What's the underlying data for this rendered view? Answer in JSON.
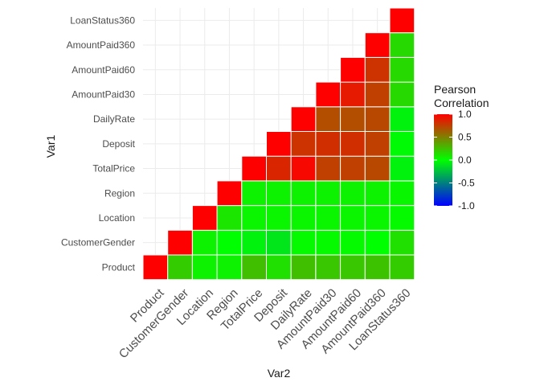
{
  "chart_data": {
    "type": "heatmap",
    "variables": [
      "Product",
      "CustomerGender",
      "Location",
      "Region",
      "TotalPrice",
      "Deposit",
      "DailyRate",
      "AmountPaid30",
      "AmountPaid60",
      "AmountPaid360",
      "LoanStatus360"
    ],
    "xlabel": "Var2",
    "ylabel": "Var1",
    "legend": {
      "title_line1": "Pearson",
      "title_line2": "Correlation",
      "ticks": [
        "1.0",
        "0.5",
        "0.0",
        "-0.5",
        "-1.0"
      ],
      "tick_values": [
        1.0,
        0.5,
        0.0,
        -0.5,
        -1.0
      ],
      "limits": [
        -1,
        1
      ],
      "placement": "right"
    },
    "colors": {
      "low": "#0000ff",
      "mid": "#00ff00",
      "high": "#ff0000"
    },
    "grid": true,
    "lower_triangle_shown": false,
    "cells": [
      {
        "x": "Product",
        "y": "Product",
        "value": 1.0
      },
      {
        "x": "CustomerGender",
        "y": "Product",
        "value": 0.2
      },
      {
        "x": "Location",
        "y": "Product",
        "value": 0.05
      },
      {
        "x": "Region",
        "y": "Product",
        "value": 0.05
      },
      {
        "x": "TotalPrice",
        "y": "Product",
        "value": 0.25
      },
      {
        "x": "Deposit",
        "y": "Product",
        "value": 0.12
      },
      {
        "x": "DailyRate",
        "y": "Product",
        "value": 0.25
      },
      {
        "x": "AmountPaid30",
        "y": "Product",
        "value": 0.22
      },
      {
        "x": "AmountPaid60",
        "y": "Product",
        "value": 0.22
      },
      {
        "x": "AmountPaid360",
        "y": "Product",
        "value": 0.24
      },
      {
        "x": "LoanStatus360",
        "y": "Product",
        "value": 0.2
      },
      {
        "x": "CustomerGender",
        "y": "CustomerGender",
        "value": 1.0
      },
      {
        "x": "Location",
        "y": "CustomerGender",
        "value": 0.05
      },
      {
        "x": "Region",
        "y": "CustomerGender",
        "value": 0.0
      },
      {
        "x": "TotalPrice",
        "y": "CustomerGender",
        "value": -0.05
      },
      {
        "x": "Deposit",
        "y": "CustomerGender",
        "value": -0.1
      },
      {
        "x": "DailyRate",
        "y": "CustomerGender",
        "value": 0.02
      },
      {
        "x": "AmountPaid30",
        "y": "CustomerGender",
        "value": 0.02
      },
      {
        "x": "AmountPaid60",
        "y": "CustomerGender",
        "value": 0.02
      },
      {
        "x": "AmountPaid360",
        "y": "CustomerGender",
        "value": 0.0
      },
      {
        "x": "LoanStatus360",
        "y": "CustomerGender",
        "value": 0.12
      },
      {
        "x": "Location",
        "y": "Location",
        "value": 1.0
      },
      {
        "x": "Region",
        "y": "Location",
        "value": 0.1
      },
      {
        "x": "TotalPrice",
        "y": "Location",
        "value": 0.04
      },
      {
        "x": "Deposit",
        "y": "Location",
        "value": 0.04
      },
      {
        "x": "DailyRate",
        "y": "Location",
        "value": 0.04
      },
      {
        "x": "AmountPaid30",
        "y": "Location",
        "value": 0.04
      },
      {
        "x": "AmountPaid60",
        "y": "Location",
        "value": 0.04
      },
      {
        "x": "AmountPaid360",
        "y": "Location",
        "value": 0.04
      },
      {
        "x": "LoanStatus360",
        "y": "Location",
        "value": 0.02
      },
      {
        "x": "Region",
        "y": "Region",
        "value": 1.0
      },
      {
        "x": "TotalPrice",
        "y": "Region",
        "value": 0.05
      },
      {
        "x": "Deposit",
        "y": "Region",
        "value": 0.05
      },
      {
        "x": "DailyRate",
        "y": "Region",
        "value": 0.05
      },
      {
        "x": "AmountPaid30",
        "y": "Region",
        "value": 0.05
      },
      {
        "x": "AmountPaid60",
        "y": "Region",
        "value": 0.05
      },
      {
        "x": "AmountPaid360",
        "y": "Region",
        "value": 0.05
      },
      {
        "x": "LoanStatus360",
        "y": "Region",
        "value": 0.03
      },
      {
        "x": "TotalPrice",
        "y": "TotalPrice",
        "value": 1.0
      },
      {
        "x": "Deposit",
        "y": "TotalPrice",
        "value": 0.85
      },
      {
        "x": "DailyRate",
        "y": "TotalPrice",
        "value": 0.97
      },
      {
        "x": "AmountPaid30",
        "y": "TotalPrice",
        "value": 0.75
      },
      {
        "x": "AmountPaid60",
        "y": "TotalPrice",
        "value": 0.75
      },
      {
        "x": "AmountPaid360",
        "y": "TotalPrice",
        "value": 0.72
      },
      {
        "x": "LoanStatus360",
        "y": "TotalPrice",
        "value": -0.05
      },
      {
        "x": "Deposit",
        "y": "Deposit",
        "value": 1.0
      },
      {
        "x": "DailyRate",
        "y": "Deposit",
        "value": 0.8
      },
      {
        "x": "AmountPaid30",
        "y": "Deposit",
        "value": 0.82
      },
      {
        "x": "AmountPaid60",
        "y": "Deposit",
        "value": 0.82
      },
      {
        "x": "AmountPaid360",
        "y": "Deposit",
        "value": 0.75
      },
      {
        "x": "LoanStatus360",
        "y": "Deposit",
        "value": -0.02
      },
      {
        "x": "DailyRate",
        "y": "DailyRate",
        "value": 1.0
      },
      {
        "x": "AmountPaid30",
        "y": "DailyRate",
        "value": 0.7
      },
      {
        "x": "AmountPaid60",
        "y": "DailyRate",
        "value": 0.7
      },
      {
        "x": "AmountPaid360",
        "y": "DailyRate",
        "value": 0.72
      },
      {
        "x": "LoanStatus360",
        "y": "DailyRate",
        "value": -0.05
      },
      {
        "x": "AmountPaid30",
        "y": "AmountPaid30",
        "value": 1.0
      },
      {
        "x": "AmountPaid60",
        "y": "AmountPaid30",
        "value": 0.9
      },
      {
        "x": "AmountPaid360",
        "y": "AmountPaid30",
        "value": 0.75
      },
      {
        "x": "LoanStatus360",
        "y": "AmountPaid30",
        "value": 0.15
      },
      {
        "x": "AmountPaid60",
        "y": "AmountPaid60",
        "value": 1.0
      },
      {
        "x": "AmountPaid360",
        "y": "AmountPaid60",
        "value": 0.8
      },
      {
        "x": "LoanStatus360",
        "y": "AmountPaid60",
        "value": 0.15
      },
      {
        "x": "AmountPaid360",
        "y": "AmountPaid360",
        "value": 1.0
      },
      {
        "x": "LoanStatus360",
        "y": "AmountPaid360",
        "value": 0.15
      },
      {
        "x": "LoanStatus360",
        "y": "LoanStatus360",
        "value": 1.0
      }
    ]
  }
}
